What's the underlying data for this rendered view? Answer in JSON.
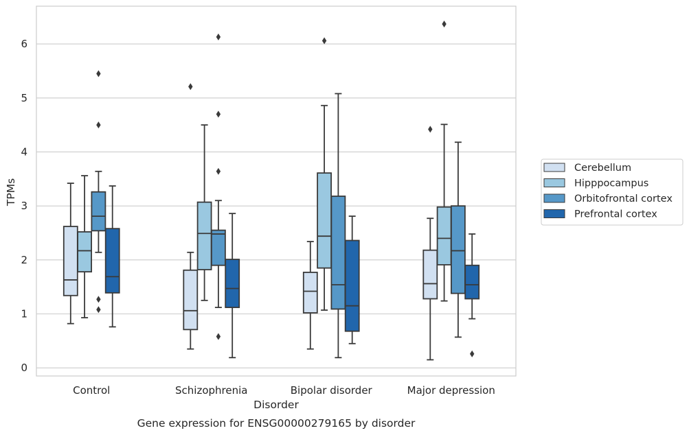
{
  "chart_data": {
    "type": "box",
    "categories": [
      "Control",
      "Schizophrenia",
      "Bipolar disorder",
      "Major depression"
    ],
    "xlabel": "Disorder",
    "ylabel": "TPMs",
    "caption": "Gene expression for ENSG00000279165 by disorder",
    "ylim": [
      -0.15,
      6.7
    ],
    "yticks": [
      0,
      1,
      2,
      3,
      4,
      5,
      6
    ],
    "grid": "horizontal",
    "legend_position": "right",
    "series": [
      {
        "name": "Cerebellum",
        "color": "#d1e0f1",
        "boxes": [
          {
            "whislo": 0.82,
            "q1": 1.34,
            "med": 1.63,
            "q3": 2.62,
            "whishi": 3.42,
            "fliers": []
          },
          {
            "whislo": 0.35,
            "q1": 0.71,
            "med": 1.06,
            "q3": 1.81,
            "whishi": 2.14,
            "fliers": [
              5.21
            ]
          },
          {
            "whislo": 0.35,
            "q1": 1.02,
            "med": 1.42,
            "q3": 1.77,
            "whishi": 2.34,
            "fliers": []
          },
          {
            "whislo": 0.15,
            "q1": 1.28,
            "med": 1.56,
            "q3": 2.18,
            "whishi": 2.77,
            "fliers": [
              4.42
            ]
          }
        ]
      },
      {
        "name": "Hipppocampus",
        "color": "#9ac8e0",
        "boxes": [
          {
            "whislo": 0.93,
            "q1": 1.78,
            "med": 2.17,
            "q3": 2.52,
            "whishi": 3.56,
            "fliers": []
          },
          {
            "whislo": 1.25,
            "q1": 1.82,
            "med": 2.49,
            "q3": 3.07,
            "whishi": 4.5,
            "fliers": []
          },
          {
            "whislo": 1.07,
            "q1": 1.85,
            "med": 2.44,
            "q3": 3.61,
            "whishi": 4.86,
            "fliers": [
              6.06
            ]
          },
          {
            "whislo": 1.24,
            "q1": 1.91,
            "med": 2.4,
            "q3": 2.98,
            "whishi": 4.51,
            "fliers": [
              6.37
            ]
          }
        ]
      },
      {
        "name": "Orbitofrontal cortex",
        "color": "#5698c8",
        "boxes": [
          {
            "whislo": 2.14,
            "q1": 2.54,
            "med": 2.81,
            "q3": 3.26,
            "whishi": 3.64,
            "fliers": [
              5.45,
              4.5,
              1.27,
              1.08
            ]
          },
          {
            "whislo": 1.12,
            "q1": 1.9,
            "med": 2.48,
            "q3": 2.55,
            "whishi": 3.1,
            "fliers": [
              6.13,
              4.7,
              3.64,
              0.58
            ]
          },
          {
            "whislo": 0.19,
            "q1": 1.09,
            "med": 1.54,
            "q3": 3.18,
            "whishi": 5.08,
            "fliers": []
          },
          {
            "whislo": 0.57,
            "q1": 1.38,
            "med": 2.17,
            "q3": 3.0,
            "whishi": 4.18,
            "fliers": []
          }
        ]
      },
      {
        "name": "Prefrontal cortex",
        "color": "#2166ac",
        "boxes": [
          {
            "whislo": 0.76,
            "q1": 1.39,
            "med": 1.69,
            "q3": 2.58,
            "whishi": 3.37,
            "fliers": []
          },
          {
            "whislo": 0.19,
            "q1": 1.12,
            "med": 1.47,
            "q3": 2.01,
            "whishi": 2.86,
            "fliers": []
          },
          {
            "whislo": 0.45,
            "q1": 0.68,
            "med": 1.15,
            "q3": 2.36,
            "whishi": 2.81,
            "fliers": []
          },
          {
            "whislo": 0.91,
            "q1": 1.28,
            "med": 1.54,
            "q3": 1.9,
            "whishi": 2.48,
            "fliers": [
              0.26
            ]
          }
        ]
      }
    ]
  }
}
